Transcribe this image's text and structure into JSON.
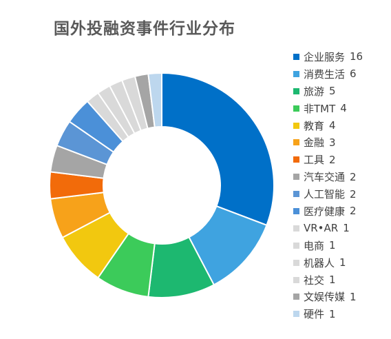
{
  "chart_data": {
    "type": "pie",
    "title": "国外投融资事件行业分布",
    "legend_position": "right",
    "slices": [
      {
        "label": "企业服务",
        "value": 16,
        "color": "#0070C8"
      },
      {
        "label": "消费生活",
        "value": 6,
        "color": "#3FA3E0"
      },
      {
        "label": "旅游",
        "value": 5,
        "color": "#1DB870"
      },
      {
        "label": "非TMT",
        "value": 4,
        "color": "#3CCB5A"
      },
      {
        "label": "教育",
        "value": 4,
        "color": "#F2C80F"
      },
      {
        "label": "金融",
        "value": 3,
        "color": "#F7A21A"
      },
      {
        "label": "工具",
        "value": 2,
        "color": "#F26B0A"
      },
      {
        "label": "汽车交通",
        "value": 2,
        "color": "#A5A5A5"
      },
      {
        "label": "人工智能",
        "value": 2,
        "color": "#5B95D5"
      },
      {
        "label": "医疗健康",
        "value": 2,
        "color": "#4B90D8"
      },
      {
        "label": "VR•AR",
        "value": 1,
        "color": "#D9D9D9"
      },
      {
        "label": "电商",
        "value": 1,
        "color": "#D9D9D9"
      },
      {
        "label": "机器人",
        "value": 1,
        "color": "#D9D9D9"
      },
      {
        "label": "社交",
        "value": 1,
        "color": "#D9D9D9"
      },
      {
        "label": "文娱传媒",
        "value": 1,
        "color": "#A5A5A5"
      },
      {
        "label": "硬件",
        "value": 1,
        "color": "#BDD7EE"
      }
    ]
  }
}
